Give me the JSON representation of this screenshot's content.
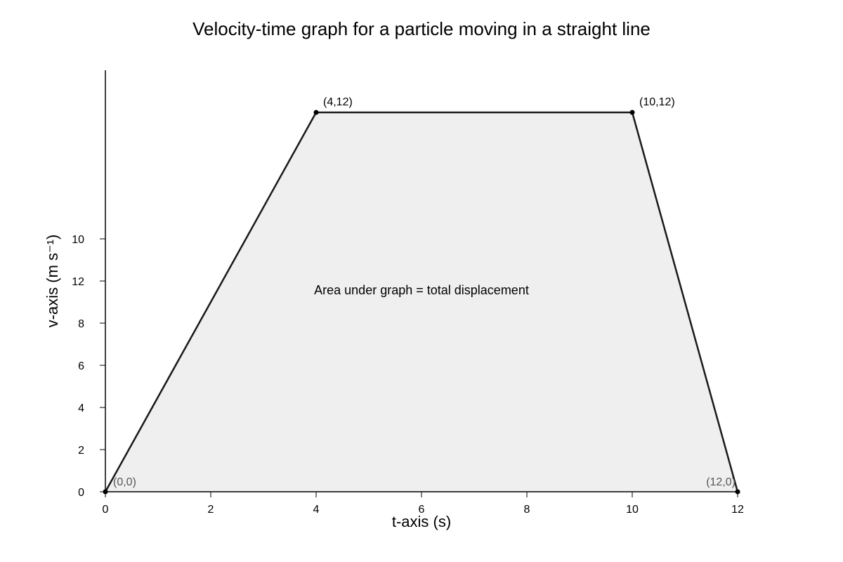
{
  "chart_data": {
    "type": "area",
    "title": "Velocity-time graph for a particle moving in a straight line",
    "xlabel": "t-axis (s)",
    "ylabel": "v-axis (m s⁻¹)",
    "xlim": [
      0,
      12
    ],
    "x_ticks": [
      {
        "value": 0,
        "label": "0"
      },
      {
        "value": 2,
        "label": "2"
      },
      {
        "value": 4,
        "label": "4"
      },
      {
        "value": 6,
        "label": "6"
      },
      {
        "value": 8,
        "label": "8"
      },
      {
        "value": 10,
        "label": "10"
      },
      {
        "value": 12,
        "label": "12"
      }
    ],
    "y_ticks": [
      {
        "label": "0"
      },
      {
        "label": "2"
      },
      {
        "label": "4"
      },
      {
        "label": "6"
      },
      {
        "label": "8"
      },
      {
        "label": "12"
      },
      {
        "label": "10"
      }
    ],
    "series": [
      {
        "points": [
          {
            "x": 0,
            "y": 0,
            "label": "(0,0)"
          },
          {
            "x": 4,
            "y": 12,
            "label": "(4,12)"
          },
          {
            "x": 10,
            "y": 12,
            "label": "(10,12)"
          },
          {
            "x": 12,
            "y": 0,
            "label": "(12,0)"
          }
        ]
      }
    ],
    "annotations": [
      {
        "text": "Area under graph = total displacement"
      }
    ],
    "grid": false,
    "legend": "none",
    "colors": {
      "line": "#1a1a1a",
      "fill": "#efefef",
      "axis": "#000000",
      "point": "#000000",
      "point_label_dark": "#000000",
      "point_label_muted": "#555555"
    }
  }
}
